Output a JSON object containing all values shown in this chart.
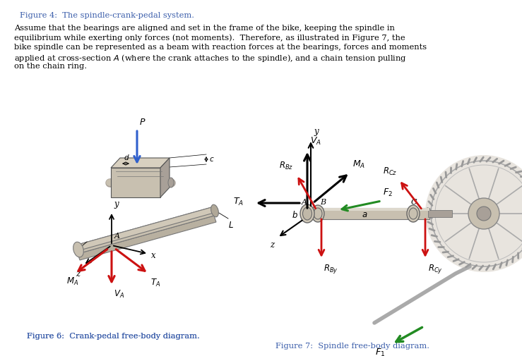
{
  "bg": "#ffffff",
  "blk": "#000000",
  "red": "#cc1111",
  "grn": "#228B22",
  "blu": "#3060cc",
  "btxt": "#3a5daa",
  "gl": "#c8c0b0",
  "gm": "#a8a098",
  "gd": "#777777",
  "title": "Figure 4:  The spindle-crank-pedal system.",
  "p1": "Assume that the bearings are aligned and set in the frame of the bike, keeping the spindle in",
  "p2": "equilibrium while exerting only forces (not moments).  Therefore, as illustrated in Figure 7, the",
  "p3": "bike spindle can be represented as a beam with reaction forces at the bearings, forces and moments",
  "p4": "applied at cross-section $A$ (where the crank attaches to the spindle), and a chain tension pulling",
  "p5": "on the chain ring.",
  "cap6": "Figure 6:  Crank-pedal free-body diagram.",
  "cap7": "Figure 7:  Spindle free-body diagram."
}
